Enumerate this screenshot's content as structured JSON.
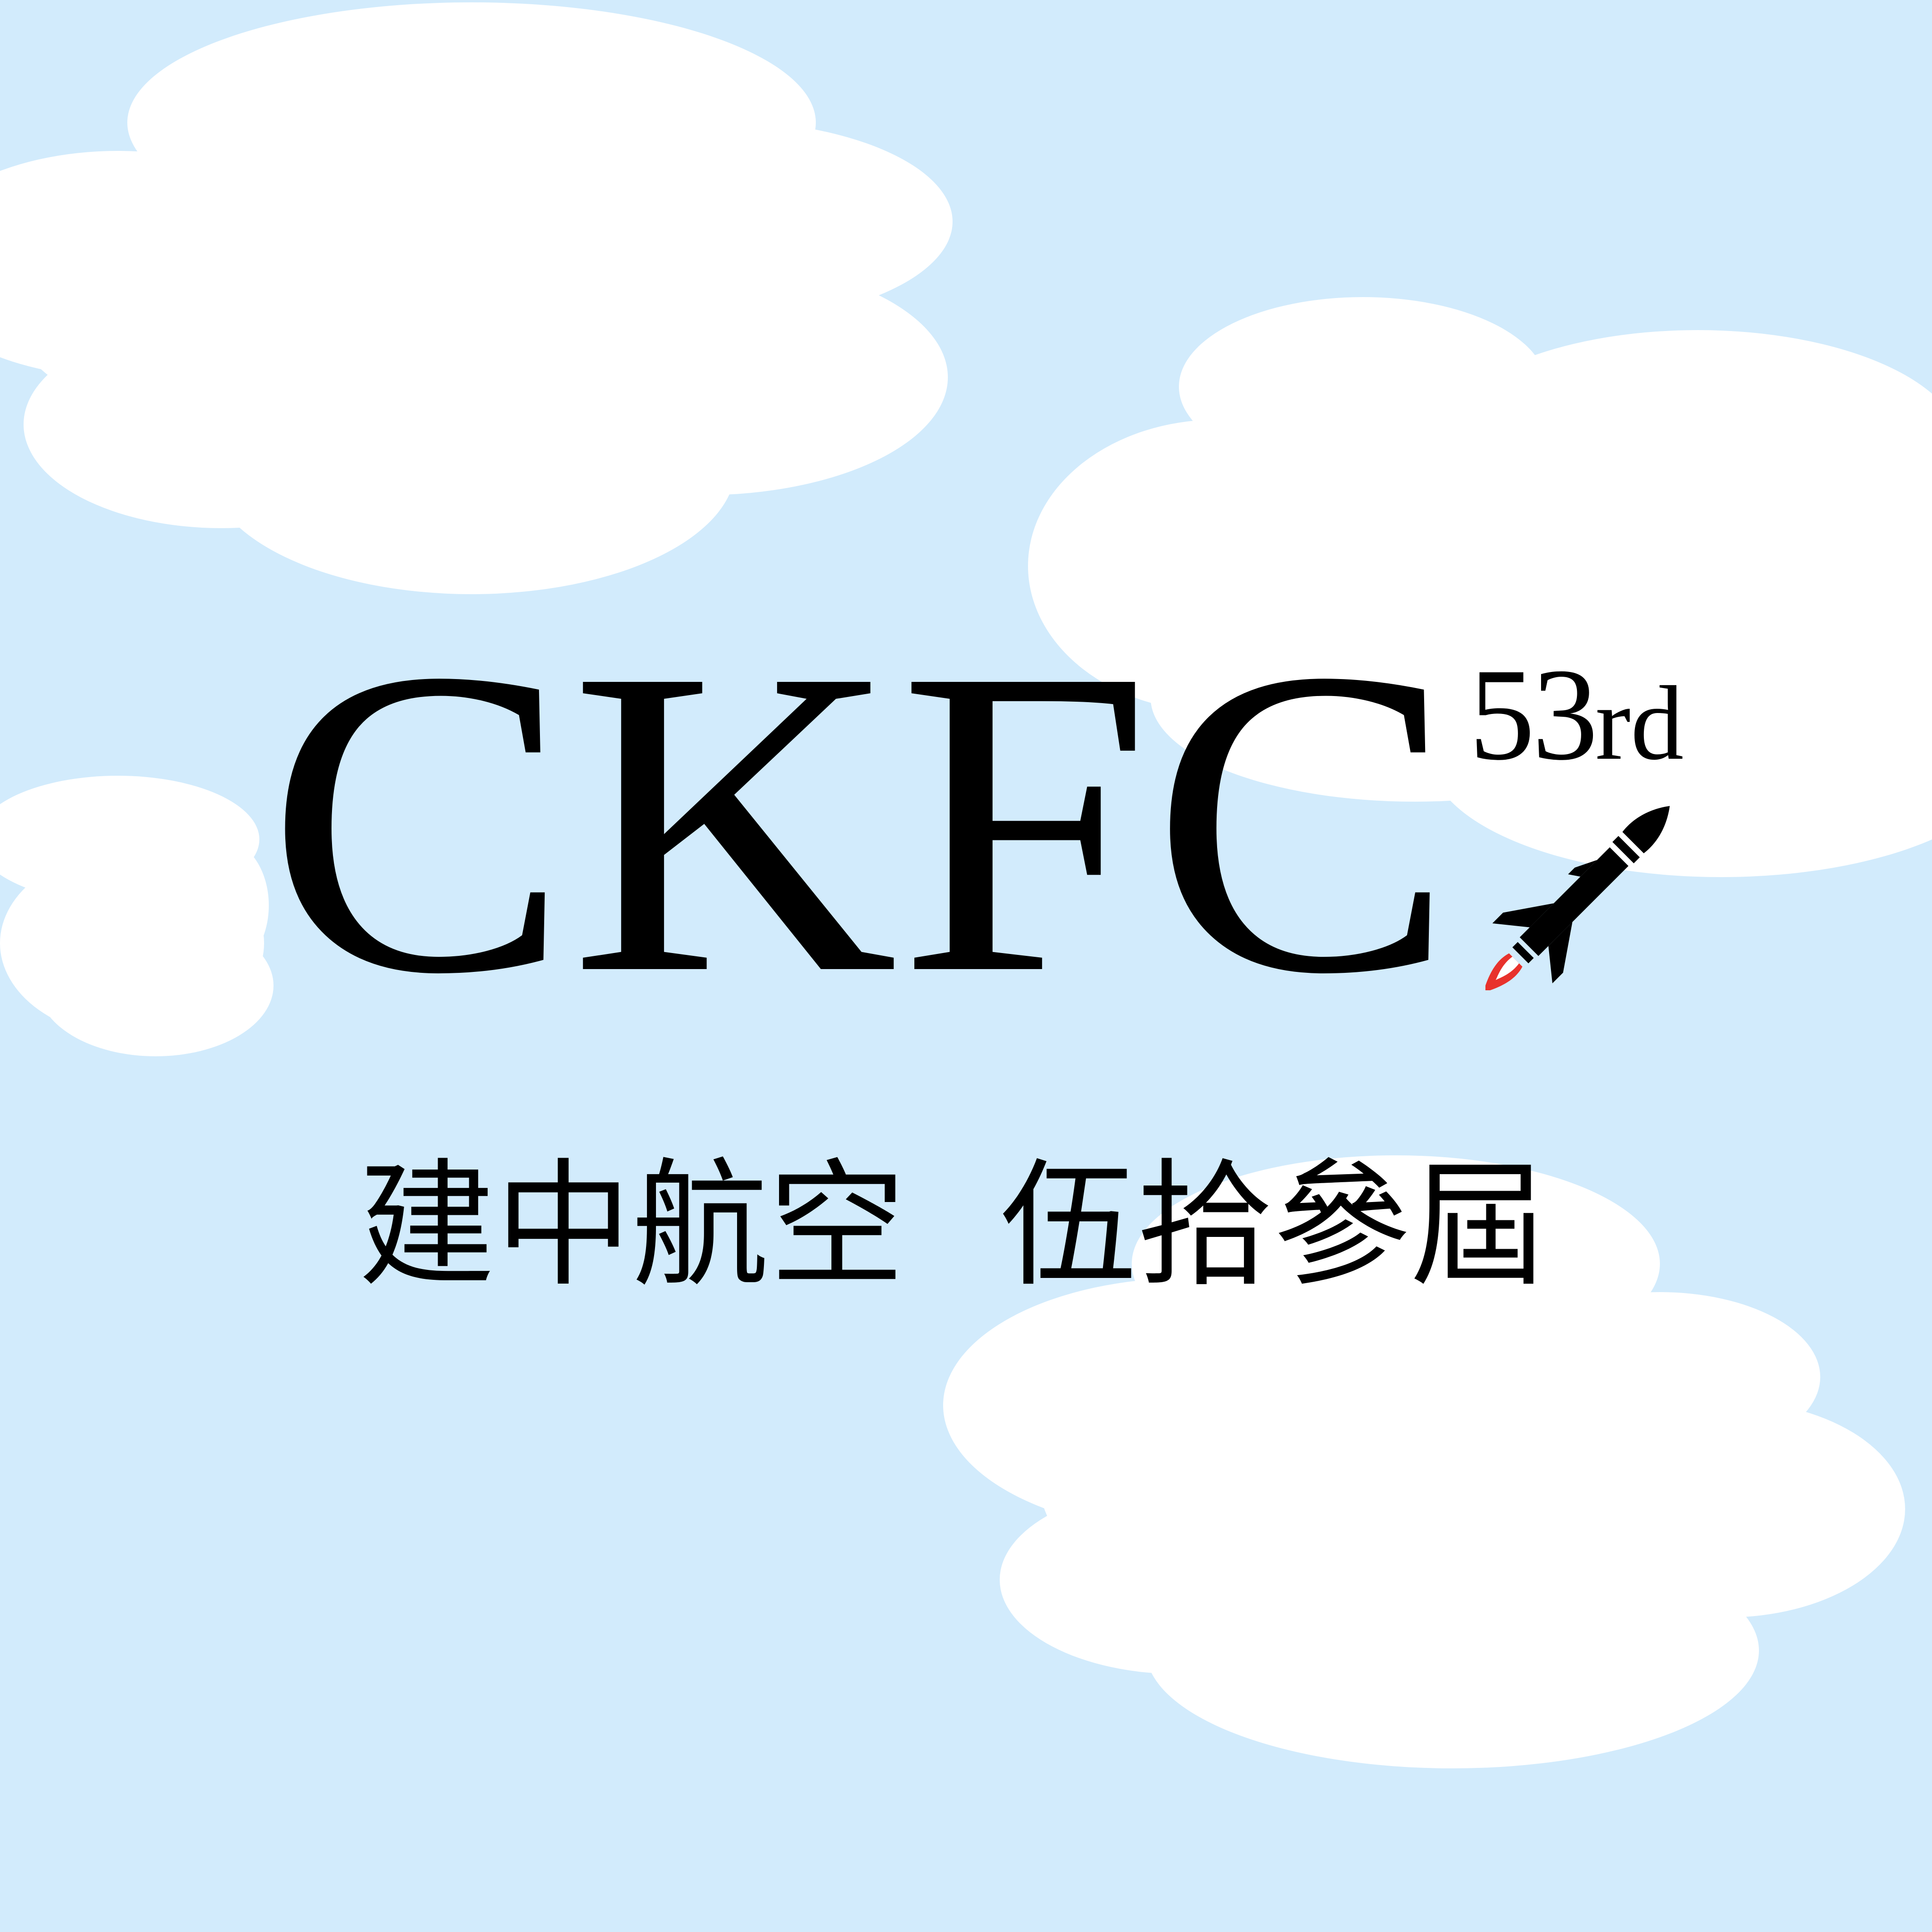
{
  "logo": {
    "wordmark": "CKFC",
    "edition_number": "53",
    "edition_suffix": "rd"
  },
  "subtitle": {
    "left": "建中航空",
    "right": "伍拾參屆"
  },
  "colors": {
    "sky": "#d2ebfc",
    "cloud": "#ffffff",
    "text": "#000000",
    "rocket": "#000000",
    "flame": "#e8322c"
  },
  "icons": [
    "cloud-icon",
    "rocket-icon"
  ]
}
